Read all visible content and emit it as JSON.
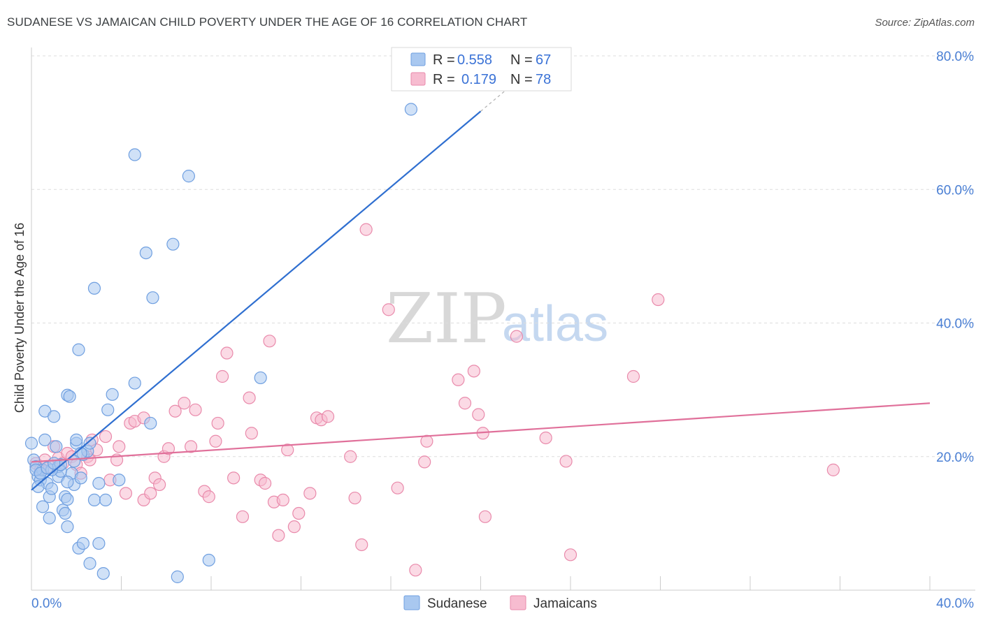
{
  "title": "SUDANESE VS JAMAICAN CHILD POVERTY UNDER THE AGE OF 16 CORRELATION CHART",
  "source": "Source: ZipAtlas.com",
  "watermark": {
    "zip": "ZIP",
    "atlas": "atlas"
  },
  "legend": {
    "r_label": "R =",
    "n_label": "N =",
    "rows": [
      {
        "name": "Sudanese",
        "r": "0.558",
        "n": "67",
        "color": "#a9c8f0",
        "stroke": "#6f9fe0"
      },
      {
        "name": "Jamaicans",
        "r": "0.179",
        "n": "78",
        "color": "#f7bcd0",
        "stroke": "#e98aab"
      }
    ]
  },
  "chart_data": {
    "type": "scatter",
    "title": "SUDANESE VS JAMAICAN CHILD POVERTY UNDER THE AGE OF 16 CORRELATION CHART",
    "xlabel": "",
    "ylabel": "Child Poverty Under the Age of 16",
    "xlim": [
      0,
      40
    ],
    "ylim": [
      0,
      80
    ],
    "x_ticks_labels": [
      "0.0%",
      "40.0%"
    ],
    "y_ticks": [
      20,
      40,
      60,
      80
    ],
    "y_ticks_labels": [
      "20.0%",
      "40.0%",
      "60.0%",
      "80.0%"
    ],
    "series": [
      {
        "name": "Sudanese",
        "color": "#a9c8f0",
        "stroke": "#6f9fe0",
        "trend_color": "#2f6fd0",
        "trend": {
          "x0": 0.0,
          "y0": 15.0,
          "x1": 20.0,
          "y1": 71.7,
          "dash_to_x": 22.3,
          "dash_to_y": 78.2
        },
        "points": [
          [
            0.0,
            22.0
          ],
          [
            0.1,
            19.5
          ],
          [
            0.2,
            18.5
          ],
          [
            0.3,
            17.0
          ],
          [
            0.4,
            16.5
          ],
          [
            0.5,
            18.0
          ],
          [
            0.5,
            12.5
          ],
          [
            0.6,
            26.8
          ],
          [
            0.6,
            22.5
          ],
          [
            0.7,
            16.0
          ],
          [
            0.8,
            14.0
          ],
          [
            0.8,
            10.8
          ],
          [
            0.9,
            15.2
          ],
          [
            1.0,
            26.0
          ],
          [
            1.1,
            21.5
          ],
          [
            1.2,
            17.0
          ],
          [
            1.2,
            18.5
          ],
          [
            1.3,
            17.8
          ],
          [
            1.4,
            12.0
          ],
          [
            1.5,
            14.0
          ],
          [
            1.5,
            11.5
          ],
          [
            1.6,
            29.2
          ],
          [
            1.6,
            9.5
          ],
          [
            1.7,
            29.0
          ],
          [
            1.6,
            13.6
          ],
          [
            1.8,
            17.5
          ],
          [
            1.9,
            15.8
          ],
          [
            2.0,
            22.0
          ],
          [
            2.1,
            6.3
          ],
          [
            2.0,
            22.5
          ],
          [
            2.1,
            36.0
          ],
          [
            2.2,
            16.8
          ],
          [
            2.3,
            20.3
          ],
          [
            2.3,
            7.0
          ],
          [
            2.5,
            20.8
          ],
          [
            2.6,
            4.0
          ],
          [
            2.6,
            22.0
          ],
          [
            2.8,
            45.2
          ],
          [
            2.8,
            13.5
          ],
          [
            3.0,
            16.0
          ],
          [
            3.0,
            7.0
          ],
          [
            3.2,
            2.5
          ],
          [
            3.3,
            13.5
          ],
          [
            3.4,
            27.0
          ],
          [
            3.6,
            29.3
          ],
          [
            3.9,
            16.5
          ],
          [
            4.6,
            65.2
          ],
          [
            4.6,
            31.0
          ],
          [
            5.1,
            50.5
          ],
          [
            5.3,
            25.0
          ],
          [
            5.4,
            43.8
          ],
          [
            6.3,
            51.8
          ],
          [
            6.5,
            2.0
          ],
          [
            7.0,
            62.0
          ],
          [
            7.9,
            4.5
          ],
          [
            10.2,
            31.8
          ],
          [
            16.9,
            72.0
          ],
          [
            0.2,
            18.0
          ],
          [
            0.9,
            18.0
          ],
          [
            1.3,
            18.8
          ],
          [
            1.6,
            16.2
          ],
          [
            0.4,
            17.5
          ],
          [
            0.7,
            18.3
          ],
          [
            2.2,
            20.5
          ],
          [
            1.0,
            19.0
          ],
          [
            0.3,
            15.5
          ],
          [
            1.9,
            19.3
          ]
        ]
      },
      {
        "name": "Jamaicans",
        "color": "#f7bcd0",
        "stroke": "#e98aab",
        "trend_color": "#e0709a",
        "trend": {
          "x0": 0.0,
          "y0": 19.2,
          "x1": 40.0,
          "y1": 28.0
        },
        "points": [
          [
            0.2,
            19.0
          ],
          [
            0.4,
            18.0
          ],
          [
            0.6,
            19.5
          ],
          [
            0.8,
            18.5
          ],
          [
            1.0,
            21.5
          ],
          [
            1.2,
            19.8
          ],
          [
            1.4,
            19.0
          ],
          [
            1.6,
            20.5
          ],
          [
            1.8,
            20.0
          ],
          [
            2.0,
            18.8
          ],
          [
            2.2,
            17.5
          ],
          [
            2.5,
            20.0
          ],
          [
            2.6,
            19.5
          ],
          [
            2.7,
            22.5
          ],
          [
            2.9,
            21.0
          ],
          [
            3.3,
            23.0
          ],
          [
            3.5,
            16.5
          ],
          [
            3.8,
            19.5
          ],
          [
            3.9,
            21.5
          ],
          [
            4.2,
            14.5
          ],
          [
            4.4,
            25.0
          ],
          [
            4.6,
            25.3
          ],
          [
            5.0,
            25.8
          ],
          [
            5.0,
            13.5
          ],
          [
            5.3,
            14.5
          ],
          [
            5.5,
            16.8
          ],
          [
            5.7,
            15.8
          ],
          [
            5.9,
            20.0
          ],
          [
            6.1,
            21.2
          ],
          [
            6.4,
            26.8
          ],
          [
            6.8,
            28.0
          ],
          [
            7.1,
            21.5
          ],
          [
            7.3,
            27.0
          ],
          [
            7.7,
            14.8
          ],
          [
            7.9,
            14.0
          ],
          [
            8.2,
            22.3
          ],
          [
            8.3,
            25.0
          ],
          [
            8.5,
            32.0
          ],
          [
            8.7,
            35.5
          ],
          [
            9.0,
            16.8
          ],
          [
            9.4,
            11.0
          ],
          [
            9.7,
            28.8
          ],
          [
            9.8,
            23.5
          ],
          [
            10.2,
            16.5
          ],
          [
            10.4,
            16.0
          ],
          [
            10.6,
            37.3
          ],
          [
            10.8,
            13.2
          ],
          [
            11.0,
            8.2
          ],
          [
            11.2,
            13.5
          ],
          [
            11.4,
            21.0
          ],
          [
            11.7,
            9.5
          ],
          [
            11.9,
            11.5
          ],
          [
            12.4,
            14.5
          ],
          [
            12.7,
            25.8
          ],
          [
            12.9,
            25.5
          ],
          [
            13.2,
            26.0
          ],
          [
            14.2,
            20.0
          ],
          [
            14.4,
            13.8
          ],
          [
            14.7,
            6.8
          ],
          [
            14.9,
            54.0
          ],
          [
            15.9,
            42.0
          ],
          [
            16.3,
            15.3
          ],
          [
            17.1,
            3.0
          ],
          [
            17.5,
            19.2
          ],
          [
            17.6,
            22.3
          ],
          [
            19.0,
            31.5
          ],
          [
            19.3,
            28.0
          ],
          [
            19.7,
            32.8
          ],
          [
            19.9,
            26.3
          ],
          [
            20.1,
            23.5
          ],
          [
            20.2,
            11.0
          ],
          [
            21.6,
            38.0
          ],
          [
            22.9,
            22.8
          ],
          [
            23.8,
            19.3
          ],
          [
            24.0,
            5.3
          ],
          [
            26.8,
            32.0
          ],
          [
            27.9,
            43.5
          ],
          [
            35.7,
            18.0
          ]
        ]
      }
    ]
  }
}
